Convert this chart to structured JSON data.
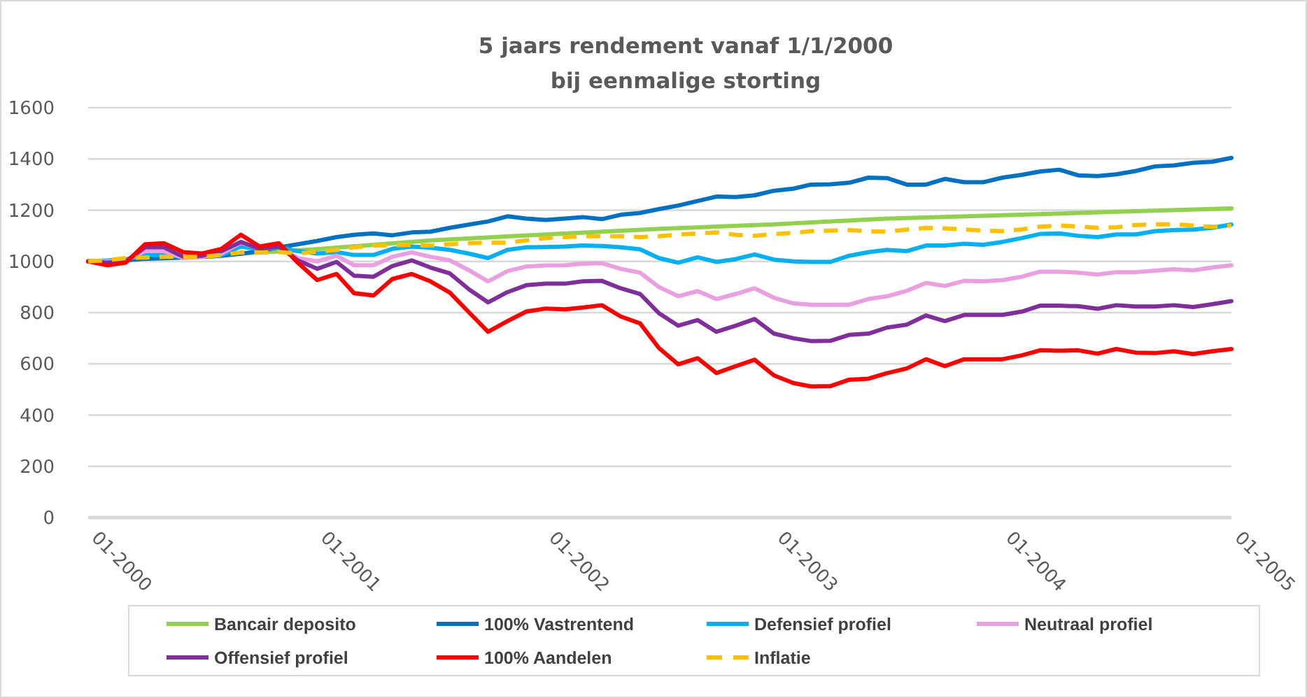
{
  "chart_data": {
    "type": "line",
    "title": "5 jaars rendement vanaf 1/1/2000\nbij eenmalige storting",
    "x": [
      "2000-01",
      "2000-02",
      "2000-03",
      "2000-04",
      "2000-05",
      "2000-06",
      "2000-07",
      "2000-08",
      "2000-09",
      "2000-10",
      "2000-11",
      "2000-12",
      "2001-01",
      "2001-02",
      "2001-03",
      "2001-04",
      "2001-05",
      "2001-06",
      "2001-07",
      "2001-08",
      "2001-09",
      "2001-10",
      "2001-11",
      "2001-12",
      "2002-01",
      "2002-02",
      "2002-03",
      "2002-04",
      "2002-05",
      "2002-06",
      "2002-07",
      "2002-08",
      "2002-09",
      "2002-10",
      "2002-11",
      "2002-12",
      "2003-01",
      "2003-02",
      "2003-03",
      "2003-04",
      "2003-05",
      "2003-06",
      "2003-07",
      "2003-08",
      "2003-09",
      "2003-10",
      "2003-11",
      "2003-12",
      "2004-01",
      "2004-02",
      "2004-03",
      "2004-04",
      "2004-05",
      "2004-06",
      "2004-07",
      "2004-08",
      "2004-09",
      "2004-10",
      "2004-11",
      "2004-12",
      "2005-01"
    ],
    "xlim": [
      "2000-01",
      "2005-01"
    ],
    "xticks": [
      {
        "value": "2000-01",
        "label": "01-2000"
      },
      {
        "value": "2001-01",
        "label": "01-2001"
      },
      {
        "value": "2002-01",
        "label": "01-2002"
      },
      {
        "value": "2003-01",
        "label": "01-2003"
      },
      {
        "value": "2004-01",
        "label": "01-2004"
      },
      {
        "value": "2005-01",
        "label": "01-2005"
      }
    ],
    "ylim": [
      0,
      1600
    ],
    "yticks": [
      0,
      200,
      400,
      600,
      800,
      1000,
      1200,
      1400,
      1600
    ],
    "grid": "y",
    "legend": "bottom",
    "series": [
      {
        "name": "Bancair deposito",
        "color": "#92d050",
        "x": [
          "2000-01",
          "2000-07",
          "2001-01",
          "2001-07",
          "2002-01",
          "2002-07",
          "2003-01",
          "2003-07",
          "2004-01",
          "2004-07",
          "2005-01"
        ],
        "values": [
          1000,
          1022,
          1048,
          1082,
          1105,
          1127,
          1145,
          1167,
          1180,
          1194,
          1207
        ]
      },
      {
        "name": "100% Vastrentend",
        "color": "#0070c0",
        "values": [
          1000,
          1002,
          1005,
          1010,
          1012,
          1015,
          1018,
          1022,
          1030,
          1040,
          1055,
          1067,
          1080,
          1095,
          1104,
          1109,
          1102,
          1113,
          1116,
          1131,
          1144,
          1156,
          1176,
          1167,
          1162,
          1167,
          1173,
          1165,
          1182,
          1189,
          1204,
          1218,
          1236,
          1253,
          1251,
          1258,
          1276,
          1284,
          1300,
          1301,
          1307,
          1327,
          1325,
          1300,
          1300,
          1322,
          1309,
          1309,
          1327,
          1338,
          1351,
          1358,
          1336,
          1333,
          1340,
          1353,
          1371,
          1375,
          1385,
          1389,
          1404
        ]
      },
      {
        "name": "Defensief profiel",
        "color": "#00b0f0",
        "values": [
          1000,
          1003,
          1008,
          1025,
          1025,
          1018,
          1020,
          1025,
          1058,
          1047,
          1055,
          1040,
          1031,
          1036,
          1025,
          1025,
          1049,
          1058,
          1053,
          1045,
          1030,
          1013,
          1045,
          1055,
          1056,
          1058,
          1062,
          1060,
          1055,
          1047,
          1013,
          995,
          1016,
          998,
          1009,
          1027,
          1007,
          1000,
          998,
          998,
          1022,
          1036,
          1045,
          1040,
          1062,
          1062,
          1069,
          1065,
          1076,
          1091,
          1107,
          1109,
          1100,
          1095,
          1105,
          1105,
          1118,
          1122,
          1124,
          1131,
          1144
        ]
      },
      {
        "name": "Neutraal profiel",
        "color": "#e8a0e0",
        "values": [
          1000,
          1000,
          1005,
          1040,
          1040,
          1013,
          1018,
          1030,
          1073,
          1050,
          1058,
          1013,
          1000,
          1022,
          985,
          985,
          1018,
          1035,
          1018,
          1004,
          965,
          922,
          962,
          980,
          984,
          985,
          991,
          993,
          971,
          956,
          900,
          864,
          884,
          853,
          873,
          895,
          858,
          836,
          831,
          831,
          831,
          853,
          864,
          885,
          916,
          904,
          924,
          922,
          927,
          940,
          960,
          960,
          956,
          949,
          958,
          958,
          964,
          969,
          965,
          976,
          985
        ]
      },
      {
        "name": "Offensief profiel",
        "color": "#7f2f9a",
        "values": [
          1000,
          995,
          1000,
          1055,
          1055,
          1018,
          1022,
          1040,
          1076,
          1049,
          1058,
          1004,
          971,
          998,
          944,
          940,
          982,
          1004,
          976,
          953,
          890,
          840,
          880,
          907,
          913,
          913,
          922,
          924,
          895,
          873,
          798,
          749,
          771,
          725,
          749,
          775,
          718,
          700,
          689,
          690,
          713,
          718,
          742,
          753,
          789,
          767,
          791,
          791,
          791,
          804,
          827,
          827,
          825,
          815,
          829,
          824,
          824,
          829,
          822,
          833,
          845
        ]
      },
      {
        "name": "100% Aandelen",
        "color": "#ff0000",
        "values": [
          1000,
          985,
          995,
          1067,
          1071,
          1036,
          1031,
          1049,
          1104,
          1058,
          1071,
          995,
          927,
          951,
          876,
          867,
          931,
          951,
          922,
          878,
          800,
          725,
          767,
          804,
          816,
          813,
          820,
          829,
          785,
          758,
          662,
          598,
          622,
          564,
          591,
          616,
          555,
          525,
          512,
          513,
          538,
          542,
          564,
          582,
          618,
          591,
          618,
          618,
          618,
          633,
          653,
          651,
          653,
          640,
          658,
          644,
          642,
          649,
          638,
          649,
          658
        ]
      },
      {
        "name": "Inflatie",
        "color": "#ffc000",
        "line_style": "dashed",
        "values": [
          1000,
          1005,
          1013,
          1015,
          1018,
          1018,
          1018,
          1025,
          1035,
          1035,
          1036,
          1031,
          1038,
          1045,
          1055,
          1062,
          1063,
          1064,
          1062,
          1067,
          1071,
          1073,
          1073,
          1082,
          1091,
          1095,
          1098,
          1098,
          1098,
          1095,
          1098,
          1105,
          1109,
          1113,
          1104,
          1100,
          1107,
          1111,
          1118,
          1120,
          1122,
          1118,
          1116,
          1124,
          1131,
          1129,
          1125,
          1120,
          1118,
          1125,
          1135,
          1140,
          1136,
          1131,
          1133,
          1142,
          1145,
          1145,
          1140,
          1135,
          1140
        ]
      }
    ]
  }
}
